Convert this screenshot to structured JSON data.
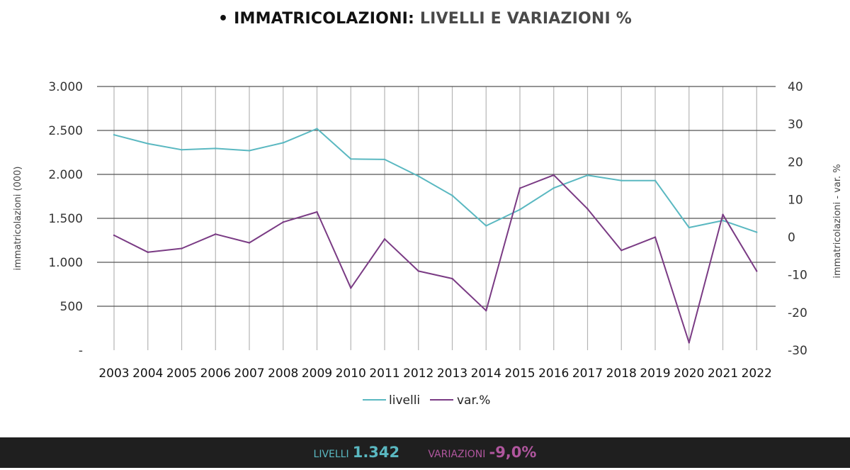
{
  "title": {
    "bullet": "•",
    "bold_part": "IMMATRICOLAZIONI:",
    "rest_part": "LIVELLI E VARIAZIONI %"
  },
  "chart_data": {
    "type": "line",
    "categories": [
      "2003",
      "2004",
      "2005",
      "2006",
      "2007",
      "2008",
      "2009",
      "2010",
      "2011",
      "2012",
      "2013",
      "2014",
      "2015",
      "2016",
      "2017",
      "2018",
      "2019",
      "2020",
      "2021",
      "2022"
    ],
    "series": [
      {
        "name": "livelli",
        "axis": "left",
        "color": "#5ab8c1",
        "values": [
          2450,
          2350,
          2280,
          2295,
          2270,
          2360,
          2520,
          2175,
          2170,
          1980,
          1760,
          1415,
          1600,
          1845,
          1990,
          1930,
          1930,
          1395,
          1475,
          1342
        ]
      },
      {
        "name": "var.%",
        "axis": "right",
        "color": "#7a3b84",
        "values": [
          0.5,
          -4,
          -3,
          0.8,
          -1.5,
          4,
          6.7,
          -13.5,
          -0.5,
          -9,
          -11,
          -19.5,
          13,
          16.5,
          7.5,
          -3.5,
          0,
          -28,
          6,
          -9
        ]
      }
    ],
    "left_axis": {
      "label": "immatricolazioni  (000)",
      "ticks": [
        0,
        500,
        1000,
        1500,
        2000,
        2500,
        3000
      ],
      "tick_labels": [
        "-",
        "500",
        "1.000",
        "1.500",
        "2.000",
        "2.500",
        "3.000"
      ],
      "range": [
        0,
        3000
      ]
    },
    "right_axis": {
      "label": "immatricolazioni - var. %",
      "ticks": [
        -30,
        -20,
        -10,
        0,
        10,
        20,
        30,
        40
      ],
      "tick_labels": [
        "-30",
        "-20",
        "-10",
        "0",
        "10",
        "20",
        "30",
        "40"
      ],
      "range": [
        -30,
        40
      ]
    },
    "grid": "horizontal and vertical",
    "legend": "bottom-center"
  },
  "footer": {
    "levels_label": "LIVELLI",
    "levels_value": "1.342",
    "variations_label": "VARIAZIONI",
    "variations_value": "-9,0%"
  }
}
